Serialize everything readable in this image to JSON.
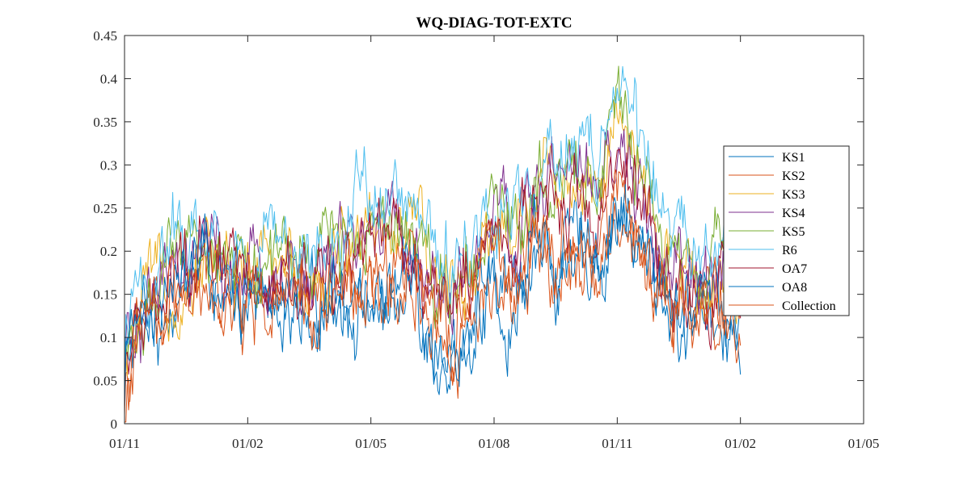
{
  "chart_data": {
    "type": "line",
    "title": "WQ-DIAG-TOT-EXTC",
    "xlabel": "",
    "ylabel": "",
    "x_ticks": [
      "01/11",
      "01/02",
      "01/05",
      "01/08",
      "01/11",
      "01/02",
      "01/05"
    ],
    "y_ticks": [
      "0",
      "0.05",
      "0.1",
      "0.15",
      "0.2",
      "0.25",
      "0.3",
      "0.35",
      "0.4",
      "0.45"
    ],
    "ylim": [
      0,
      0.45
    ],
    "x_range_months": [
      0,
      18
    ],
    "legend_position": "right",
    "grid": false,
    "series_x_months": [
      0,
      0.5,
      1,
      1.5,
      2,
      2.5,
      3,
      3.5,
      4,
      4.5,
      5,
      5.5,
      6,
      6.5,
      7,
      7.5,
      8,
      8.5,
      9,
      9.5,
      10,
      10.5,
      11,
      11.5,
      12,
      12.5,
      13,
      13.5,
      14,
      14.5,
      15
    ],
    "series": [
      {
        "name": "KS1",
        "color": "#0072BD",
        "values": [
          0.06,
          0.13,
          0.15,
          0.16,
          0.19,
          0.14,
          0.12,
          0.15,
          0.14,
          0.12,
          0.17,
          0.14,
          0.14,
          0.15,
          0.18,
          0.11,
          0.08,
          0.12,
          0.16,
          0.15,
          0.21,
          0.19,
          0.2,
          0.2,
          0.25,
          0.21,
          0.16,
          0.12,
          0.14,
          0.13,
          0.11
        ]
      },
      {
        "name": "KS2",
        "color": "#D95319",
        "values": [
          0.05,
          0.12,
          0.14,
          0.15,
          0.17,
          0.15,
          0.13,
          0.16,
          0.15,
          0.13,
          0.16,
          0.15,
          0.15,
          0.14,
          0.17,
          0.12,
          0.09,
          0.13,
          0.17,
          0.14,
          0.2,
          0.18,
          0.21,
          0.19,
          0.24,
          0.2,
          0.15,
          0.13,
          0.13,
          0.14,
          0.12
        ]
      },
      {
        "name": "KS3",
        "color": "#EDB120",
        "values": [
          0.06,
          0.14,
          0.16,
          0.17,
          0.21,
          0.18,
          0.17,
          0.18,
          0.18,
          0.17,
          0.19,
          0.21,
          0.23,
          0.24,
          0.22,
          0.17,
          0.16,
          0.2,
          0.24,
          0.22,
          0.28,
          0.3,
          0.29,
          0.28,
          0.34,
          0.28,
          0.2,
          0.18,
          0.17,
          0.18,
          0.15
        ]
      },
      {
        "name": "KS4",
        "color": "#7E2F8E",
        "values": [
          0.06,
          0.13,
          0.15,
          0.16,
          0.2,
          0.17,
          0.16,
          0.17,
          0.17,
          0.16,
          0.18,
          0.2,
          0.22,
          0.23,
          0.21,
          0.16,
          0.15,
          0.19,
          0.23,
          0.21,
          0.27,
          0.29,
          0.28,
          0.27,
          0.32,
          0.27,
          0.19,
          0.17,
          0.16,
          0.17,
          0.14
        ]
      },
      {
        "name": "KS5",
        "color": "#77AC30",
        "values": [
          0.07,
          0.14,
          0.17,
          0.18,
          0.22,
          0.19,
          0.18,
          0.19,
          0.19,
          0.18,
          0.21,
          0.22,
          0.24,
          0.26,
          0.24,
          0.18,
          0.17,
          0.21,
          0.25,
          0.23,
          0.29,
          0.31,
          0.3,
          0.29,
          0.36,
          0.29,
          0.21,
          0.19,
          0.18,
          0.19,
          0.16
        ]
      },
      {
        "name": "R6",
        "color": "#4DBEEE",
        "values": [
          0.09,
          0.16,
          0.21,
          0.22,
          0.23,
          0.2,
          0.19,
          0.21,
          0.21,
          0.2,
          0.22,
          0.25,
          0.27,
          0.28,
          0.25,
          0.19,
          0.18,
          0.22,
          0.26,
          0.25,
          0.3,
          0.33,
          0.31,
          0.31,
          0.39,
          0.33,
          0.26,
          0.21,
          0.2,
          0.21,
          0.19
        ]
      },
      {
        "name": "OA7",
        "color": "#A2142F",
        "values": [
          0.06,
          0.13,
          0.15,
          0.16,
          0.19,
          0.16,
          0.15,
          0.17,
          0.16,
          0.15,
          0.18,
          0.19,
          0.21,
          0.22,
          0.2,
          0.15,
          0.14,
          0.18,
          0.22,
          0.2,
          0.26,
          0.28,
          0.27,
          0.26,
          0.31,
          0.26,
          0.18,
          0.16,
          0.15,
          0.16,
          0.13
        ]
      },
      {
        "name": "OA8",
        "color": "#0072BD",
        "values": [
          0.06,
          0.12,
          0.15,
          0.16,
          0.18,
          0.14,
          0.12,
          0.15,
          0.14,
          0.12,
          0.16,
          0.14,
          0.13,
          0.15,
          0.18,
          0.1,
          0.08,
          0.12,
          0.15,
          0.14,
          0.2,
          0.18,
          0.19,
          0.19,
          0.24,
          0.2,
          0.15,
          0.11,
          0.13,
          0.12,
          0.1
        ]
      },
      {
        "name": "Collection",
        "color": "#D95319",
        "values": [
          0.04,
          0.12,
          0.14,
          0.15,
          0.17,
          0.16,
          0.14,
          0.16,
          0.15,
          0.14,
          0.16,
          0.16,
          0.17,
          0.16,
          0.18,
          0.13,
          0.1,
          0.14,
          0.18,
          0.16,
          0.21,
          0.2,
          0.22,
          0.21,
          0.25,
          0.21,
          0.16,
          0.14,
          0.14,
          0.15,
          0.12
        ]
      }
    ]
  }
}
